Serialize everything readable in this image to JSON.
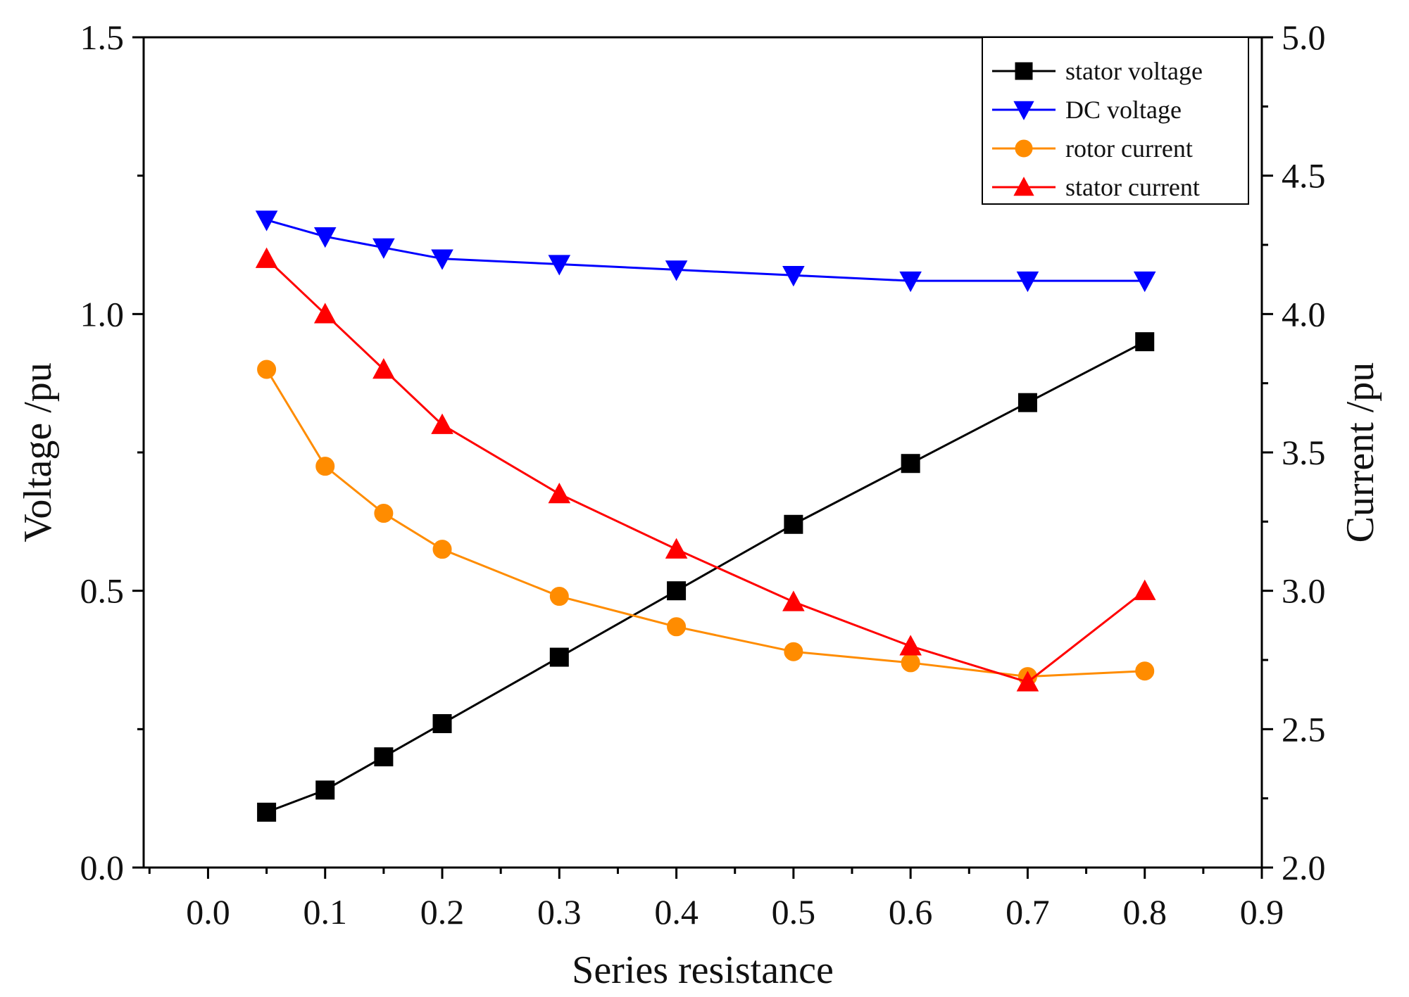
{
  "chart_data": {
    "type": "line",
    "title": "",
    "xlabel": "Series resistance",
    "ylabel_left": "Voltage /pu",
    "ylabel_right": "Current /pu",
    "xlim": [
      -0.055,
      0.9
    ],
    "ylim_left": [
      0.0,
      1.5
    ],
    "ylim_right": [
      2.0,
      5.0
    ],
    "x_ticks": [
      "0.0",
      "0.1",
      "0.2",
      "0.3",
      "0.4",
      "0.5",
      "0.6",
      "0.7",
      "0.8",
      "0.9"
    ],
    "y_left_ticks": [
      "0.0",
      "0.5",
      "1.0",
      "1.5"
    ],
    "y_right_ticks": [
      "2.0",
      "2.5",
      "3.0",
      "3.5",
      "4.0",
      "4.5",
      "5.0"
    ],
    "legend_position": "top-right",
    "grid": false,
    "x": [
      0.05,
      0.1,
      0.15,
      0.2,
      0.3,
      0.4,
      0.5,
      0.6,
      0.7,
      0.8
    ],
    "series": [
      {
        "name": "stator voltage",
        "axis": "left",
        "marker": "square",
        "color": "#000000",
        "values": [
          0.1,
          0.14,
          0.2,
          0.26,
          0.38,
          0.5,
          0.62,
          0.73,
          0.84,
          0.95
        ]
      },
      {
        "name": "DC voltage",
        "axis": "left",
        "marker": "triangle-down",
        "color": "#0000ff",
        "values": [
          1.17,
          1.14,
          1.12,
          1.1,
          1.09,
          1.08,
          1.07,
          1.06,
          1.06,
          1.06
        ]
      },
      {
        "name": "rotor current",
        "axis": "right",
        "marker": "circle",
        "color": "#ff8c00",
        "values": [
          3.8,
          3.45,
          3.28,
          3.15,
          2.98,
          2.87,
          2.78,
          2.74,
          2.69,
          2.71
        ]
      },
      {
        "name": "stator current",
        "axis": "right",
        "marker": "triangle-up",
        "color": "#ff0000",
        "values": [
          4.2,
          4.0,
          3.8,
          3.6,
          3.35,
          3.15,
          2.96,
          2.8,
          2.67,
          3.0
        ]
      }
    ]
  }
}
